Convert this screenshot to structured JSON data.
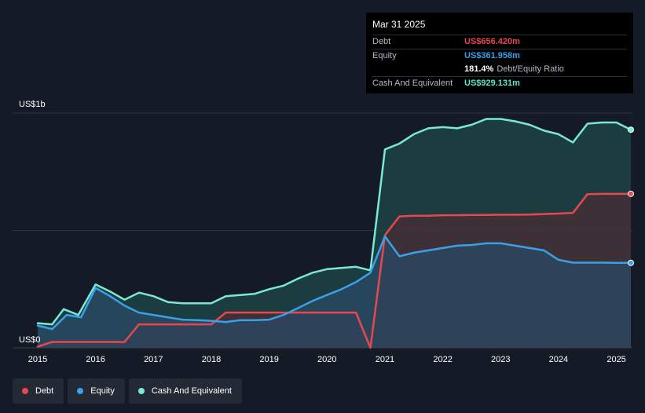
{
  "tooltip": {
    "date": "Mar 31 2025",
    "rows": [
      {
        "label": "Debt",
        "value": "US$656.420m",
        "color": "#e8474f"
      },
      {
        "label": "Equity",
        "value": "US$361.958m",
        "color": "#3aa0e8"
      },
      {
        "label": "",
        "value": "181.4%",
        "sub": "Debt/Equity Ratio",
        "color": "#ffffff"
      },
      {
        "label": "Cash And Equivalent",
        "value": "US$929.131m",
        "color": "#5ce8c9"
      }
    ]
  },
  "legend": [
    {
      "label": "Debt",
      "color": "#e8474f"
    },
    {
      "label": "Equity",
      "color": "#3aa0e8"
    },
    {
      "label": "Cash And Equivalent",
      "color": "#7be8d2"
    }
  ],
  "chart_data": {
    "type": "area",
    "y_top_label": "US$1b",
    "y_bottom_label": "US$0",
    "ylim": [
      0,
      1000
    ],
    "xlim": [
      2015.0,
      2025.25
    ],
    "x_ticks": [
      "2015",
      "2016",
      "2017",
      "2018",
      "2019",
      "2020",
      "2021",
      "2022",
      "2023",
      "2024",
      "2025"
    ],
    "grid": true,
    "series": [
      {
        "name": "Cash And Equivalent",
        "color": "#7be8d2",
        "fill": "#1e4a48",
        "x": [
          2015.0,
          2015.25,
          2015.45,
          2015.7,
          2016.0,
          2016.25,
          2016.5,
          2016.75,
          2017.0,
          2017.25,
          2017.5,
          2017.75,
          2018.0,
          2018.25,
          2018.5,
          2018.75,
          2019.0,
          2019.25,
          2019.5,
          2019.75,
          2020.0,
          2020.25,
          2020.5,
          2020.75,
          2021.0,
          2021.25,
          2021.5,
          2021.75,
          2022.0,
          2022.25,
          2022.5,
          2022.75,
          2023.0,
          2023.25,
          2023.5,
          2023.75,
          2024.0,
          2024.25,
          2024.5,
          2024.75,
          2025.0,
          2025.25
        ],
        "y": [
          105,
          100,
          165,
          140,
          270,
          240,
          205,
          235,
          220,
          195,
          190,
          190,
          190,
          220,
          225,
          230,
          250,
          265,
          295,
          320,
          335,
          340,
          345,
          330,
          845,
          870,
          910,
          935,
          940,
          935,
          950,
          975,
          975,
          965,
          950,
          925,
          910,
          875,
          955,
          960,
          960,
          929
        ]
      },
      {
        "name": "Debt",
        "color": "#e8474f",
        "fill": "#4a2e36",
        "x": [
          2015.0,
          2015.25,
          2015.5,
          2015.75,
          2016.0,
          2016.25,
          2016.5,
          2016.75,
          2017.0,
          2017.25,
          2017.5,
          2017.75,
          2018.0,
          2018.25,
          2018.5,
          2018.75,
          2019.0,
          2019.25,
          2019.5,
          2019.75,
          2020.0,
          2020.25,
          2020.5,
          2020.75,
          2021.0,
          2021.25,
          2021.5,
          2021.75,
          2022.0,
          2022.25,
          2022.5,
          2022.75,
          2023.0,
          2023.25,
          2023.5,
          2023.75,
          2024.0,
          2024.25,
          2024.5,
          2024.75,
          2025.0,
          2025.25
        ],
        "y": [
          5,
          25,
          25,
          25,
          25,
          25,
          25,
          100,
          100,
          100,
          100,
          100,
          100,
          150,
          150,
          150,
          150,
          150,
          150,
          150,
          150,
          150,
          150,
          0,
          480,
          560,
          563,
          563,
          565,
          565,
          566,
          566,
          567,
          567,
          568,
          570,
          572,
          575,
          655,
          656,
          656,
          656
        ]
      },
      {
        "name": "Equity",
        "color": "#3aa0e8",
        "fill": "#2a4a66",
        "x": [
          2015.0,
          2015.25,
          2015.5,
          2015.75,
          2016.0,
          2016.25,
          2016.5,
          2016.75,
          2017.0,
          2017.25,
          2017.5,
          2017.75,
          2018.0,
          2018.25,
          2018.5,
          2018.75,
          2019.0,
          2019.25,
          2019.5,
          2019.75,
          2020.0,
          2020.25,
          2020.5,
          2020.75,
          2021.0,
          2021.25,
          2021.5,
          2021.75,
          2022.0,
          2022.25,
          2022.5,
          2022.75,
          2023.0,
          2023.25,
          2023.5,
          2023.75,
          2024.0,
          2024.25,
          2024.5,
          2024.75,
          2025.0,
          2025.25
        ],
        "y": [
          95,
          80,
          140,
          130,
          255,
          220,
          180,
          150,
          140,
          130,
          120,
          118,
          115,
          110,
          118,
          118,
          120,
          140,
          170,
          200,
          225,
          250,
          280,
          320,
          475,
          390,
          405,
          415,
          425,
          435,
          438,
          445,
          445,
          435,
          425,
          415,
          375,
          363,
          363,
          363,
          362,
          362
        ]
      }
    ]
  }
}
